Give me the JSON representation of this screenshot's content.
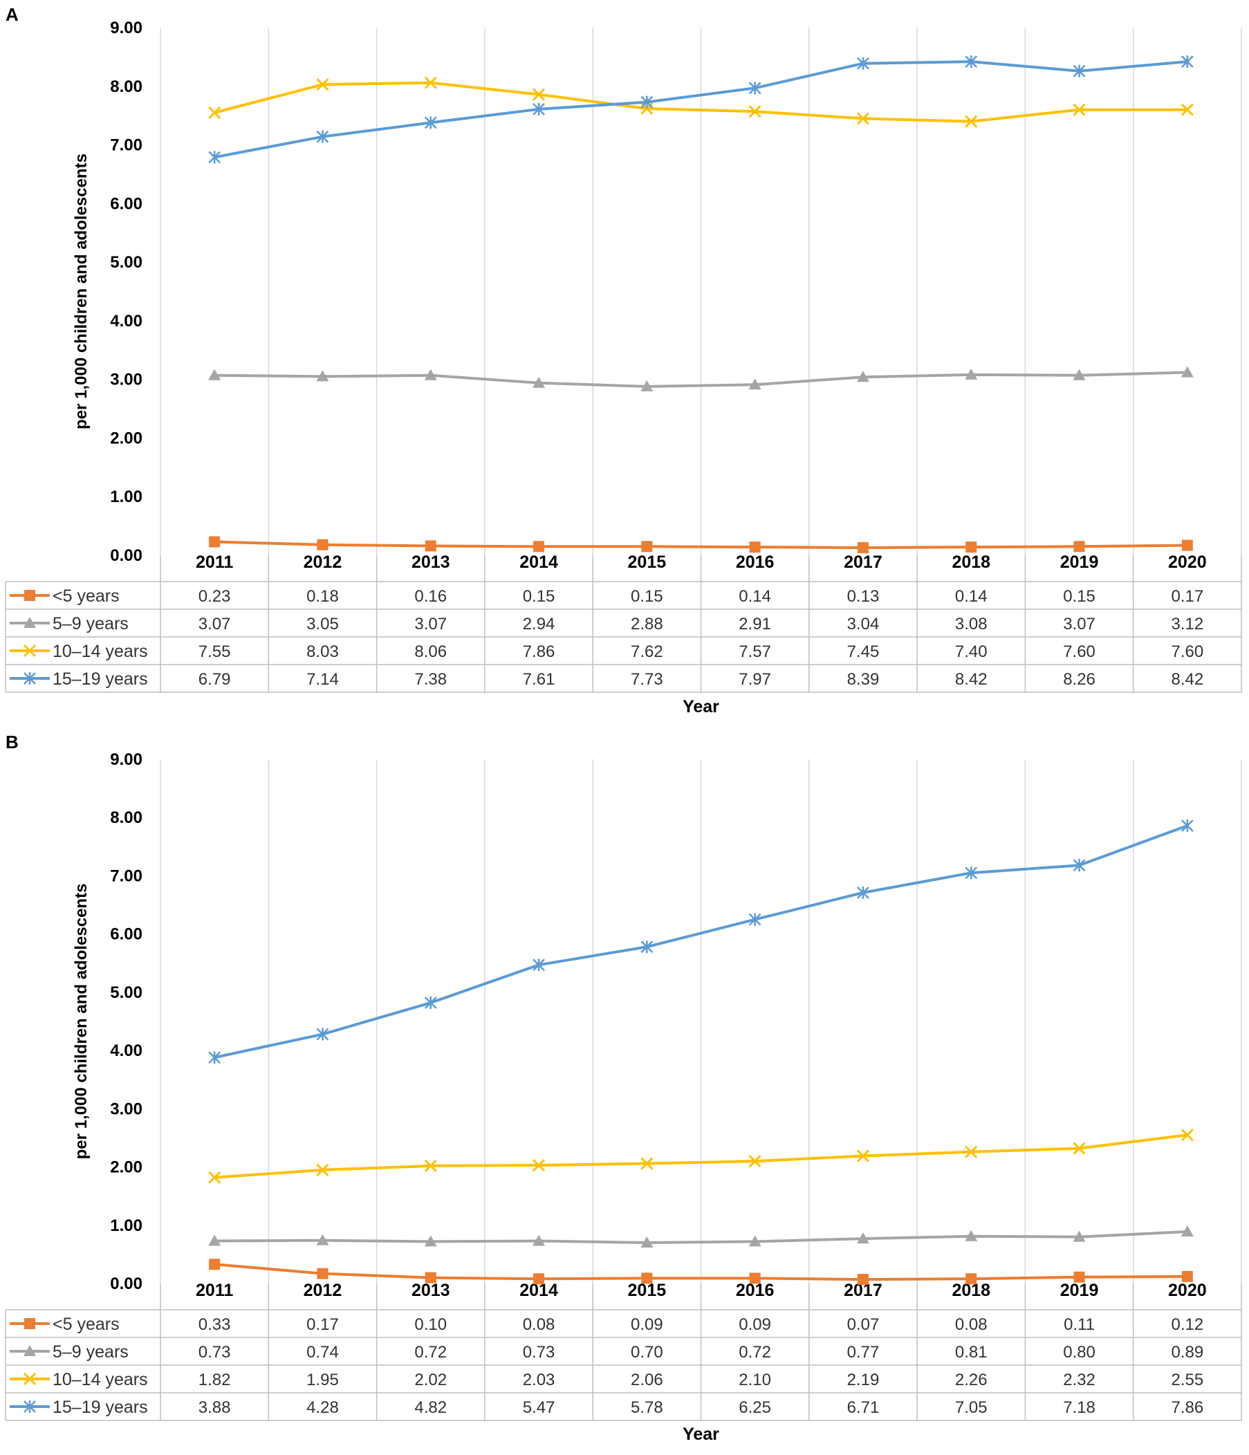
{
  "colors": {
    "lt5": "#ED7D31",
    "5to9": "#A5A5A5",
    "10to14": "#FFC000",
    "15to19": "#5B9BD5"
  },
  "chart_data": [
    {
      "panel": "A",
      "type": "line",
      "ylabel": "per 1,000 children and adolescents",
      "xlabel": "Year",
      "ylim": [
        0,
        9
      ],
      "yticks": [
        "0.00",
        "1.00",
        "2.00",
        "3.00",
        "4.00",
        "5.00",
        "6.00",
        "7.00",
        "8.00",
        "9.00"
      ],
      "categories": [
        "2011",
        "2012",
        "2013",
        "2014",
        "2015",
        "2016",
        "2017",
        "2018",
        "2019",
        "2020"
      ],
      "legend_position": "data-table",
      "series": [
        {
          "name": "<5 years",
          "key": "lt5",
          "marker": "square",
          "values": [
            "0.23",
            "0.18",
            "0.16",
            "0.15",
            "0.15",
            "0.14",
            "0.13",
            "0.14",
            "0.15",
            "0.17"
          ]
        },
        {
          "name": "5–9 years",
          "key": "5to9",
          "marker": "triangle",
          "values": [
            "3.07",
            "3.05",
            "3.07",
            "2.94",
            "2.88",
            "2.91",
            "3.04",
            "3.08",
            "3.07",
            "3.12"
          ]
        },
        {
          "name": "10–14 years",
          "key": "10to14",
          "marker": "x",
          "values": [
            "7.55",
            "8.03",
            "8.06",
            "7.86",
            "7.62",
            "7.57",
            "7.45",
            "7.40",
            "7.60",
            "7.60"
          ]
        },
        {
          "name": "15–19 years",
          "key": "15to19",
          "marker": "star",
          "values": [
            "6.79",
            "7.14",
            "7.38",
            "7.61",
            "7.73",
            "7.97",
            "8.39",
            "8.42",
            "8.26",
            "8.42"
          ]
        }
      ]
    },
    {
      "panel": "B",
      "type": "line",
      "ylabel": "per 1,000 children and adolescents",
      "xlabel": "Year",
      "ylim": [
        0,
        9
      ],
      "yticks": [
        "0.00",
        "1.00",
        "2.00",
        "3.00",
        "4.00",
        "5.00",
        "6.00",
        "7.00",
        "8.00",
        "9.00"
      ],
      "categories": [
        "2011",
        "2012",
        "2013",
        "2014",
        "2015",
        "2016",
        "2017",
        "2018",
        "2019",
        "2020"
      ],
      "legend_position": "data-table",
      "series": [
        {
          "name": "<5 years",
          "key": "lt5",
          "marker": "square",
          "values": [
            "0.33",
            "0.17",
            "0.10",
            "0.08",
            "0.09",
            "0.09",
            "0.07",
            "0.08",
            "0.11",
            "0.12"
          ]
        },
        {
          "name": "5–9 years",
          "key": "5to9",
          "marker": "triangle",
          "values": [
            "0.73",
            "0.74",
            "0.72",
            "0.73",
            "0.70",
            "0.72",
            "0.77",
            "0.81",
            "0.80",
            "0.89"
          ]
        },
        {
          "name": "10–14 years",
          "key": "10to14",
          "marker": "x",
          "values": [
            "1.82",
            "1.95",
            "2.02",
            "2.03",
            "2.06",
            "2.10",
            "2.19",
            "2.26",
            "2.32",
            "2.55"
          ]
        },
        {
          "name": "15–19 years",
          "key": "15to19",
          "marker": "star",
          "values": [
            "3.88",
            "4.28",
            "4.82",
            "5.47",
            "5.78",
            "6.25",
            "6.71",
            "7.05",
            "7.18",
            "7.86"
          ]
        }
      ]
    }
  ]
}
